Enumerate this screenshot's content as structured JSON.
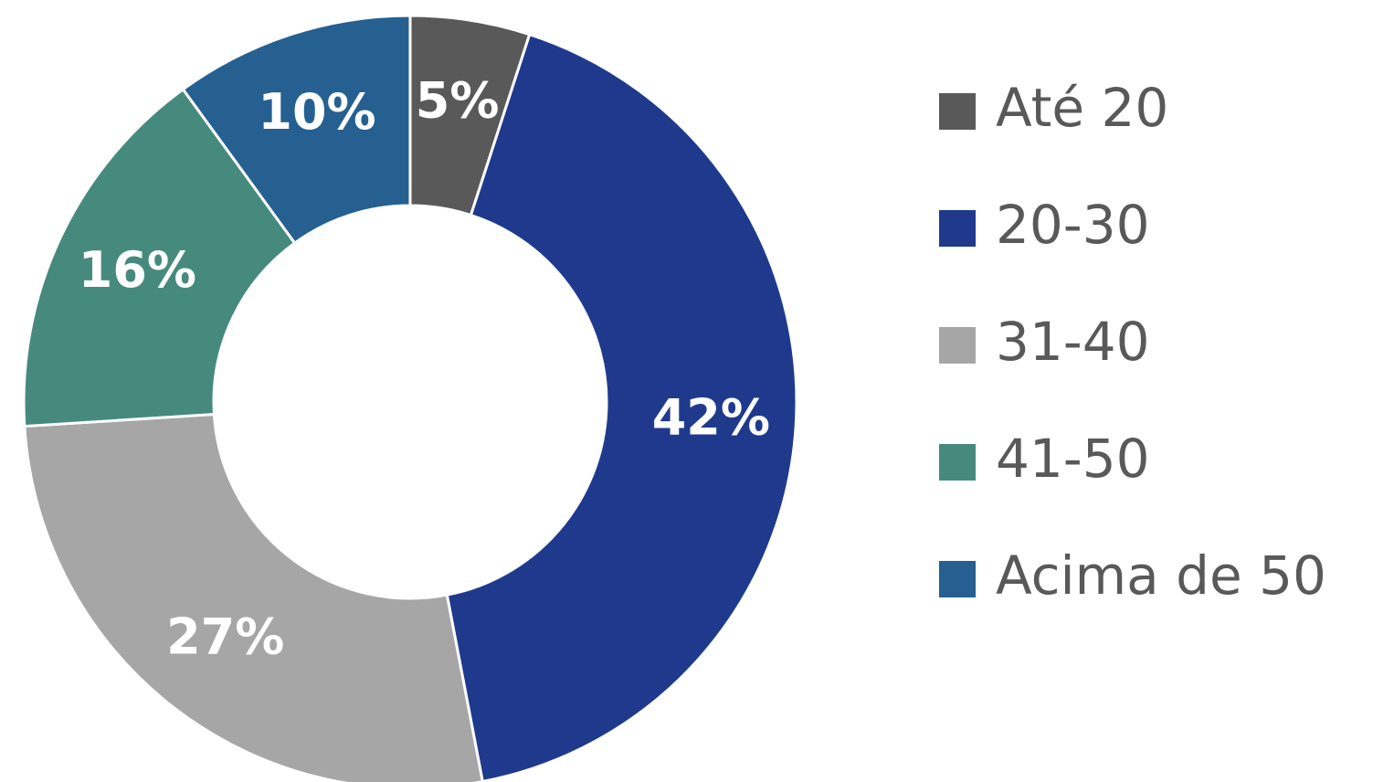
{
  "chart_data": {
    "type": "donut",
    "categories": [
      "Até 20",
      "20-30",
      "31-40",
      "41-50",
      "Acima de 50"
    ],
    "values": [
      5,
      42,
      27,
      16,
      10
    ],
    "value_labels": [
      "5%",
      "42%",
      "27%",
      "16%",
      "10%"
    ],
    "colors": [
      "#595959",
      "#1f3a8c",
      "#a6a6a6",
      "#468a7e",
      "#256091"
    ],
    "legend": "right"
  }
}
